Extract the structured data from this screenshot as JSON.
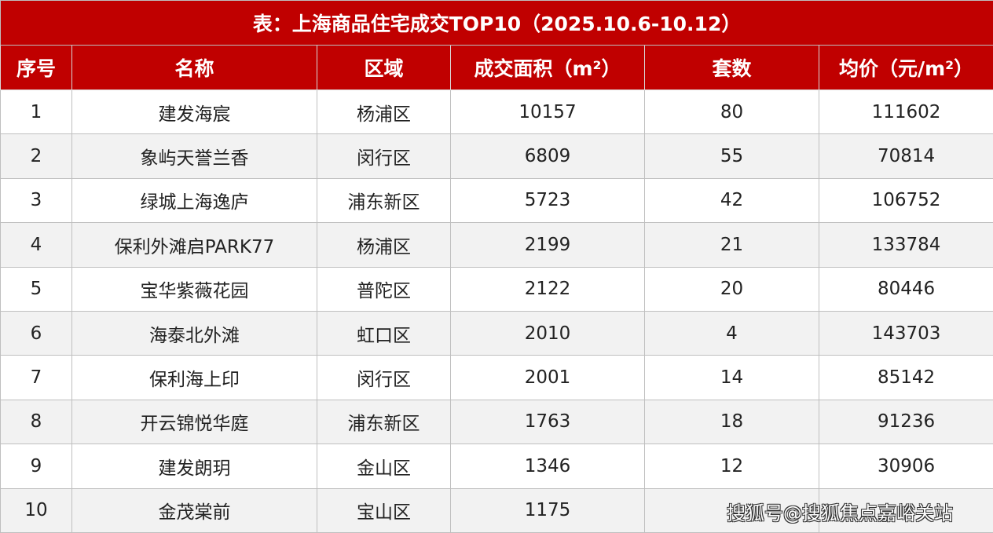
{
  "title": "表：上海商品住宅成交TOP10（2025.10.6-10.12）",
  "columns": [
    "序号",
    "名称",
    "区域",
    "成交面积（m²）",
    "套数",
    "均价（元/m²）"
  ],
  "rows": [
    [
      "1",
      "建发海宸",
      "杨浦区",
      "10157",
      "80",
      "111602"
    ],
    [
      "2",
      "象屿天誉兰香",
      "闵行区",
      "6809",
      "55",
      "70814"
    ],
    [
      "3",
      "绿城上海逸庐",
      "浦东新区",
      "5723",
      "42",
      "106752"
    ],
    [
      "4",
      "保利外滩启PARK77",
      "杨浦区",
      "2199",
      "21",
      "133784"
    ],
    [
      "5",
      "宝华紫薇花园",
      "普陀区",
      "2122",
      "20",
      "80446"
    ],
    [
      "6",
      "海泰北外滩",
      "虹口区",
      "2010",
      "4",
      "143703"
    ],
    [
      "7",
      "保利海上印",
      "闵行区",
      "2001",
      "14",
      "85142"
    ],
    [
      "8",
      "开云锦悦华庭",
      "浦东新区",
      "1763",
      "18",
      "91236"
    ],
    [
      "9",
      "建发朗玥",
      "金山区",
      "1346",
      "12",
      "30906"
    ],
    [
      "10",
      "金茂棠前",
      "宝山区",
      "1175",
      "",
      ""
    ]
  ],
  "watermark": "搜狐号@搜狐焦点嘉峪关站",
  "colors": {
    "header_bg": "#c00000",
    "alt_row": "#f2f2f2"
  }
}
